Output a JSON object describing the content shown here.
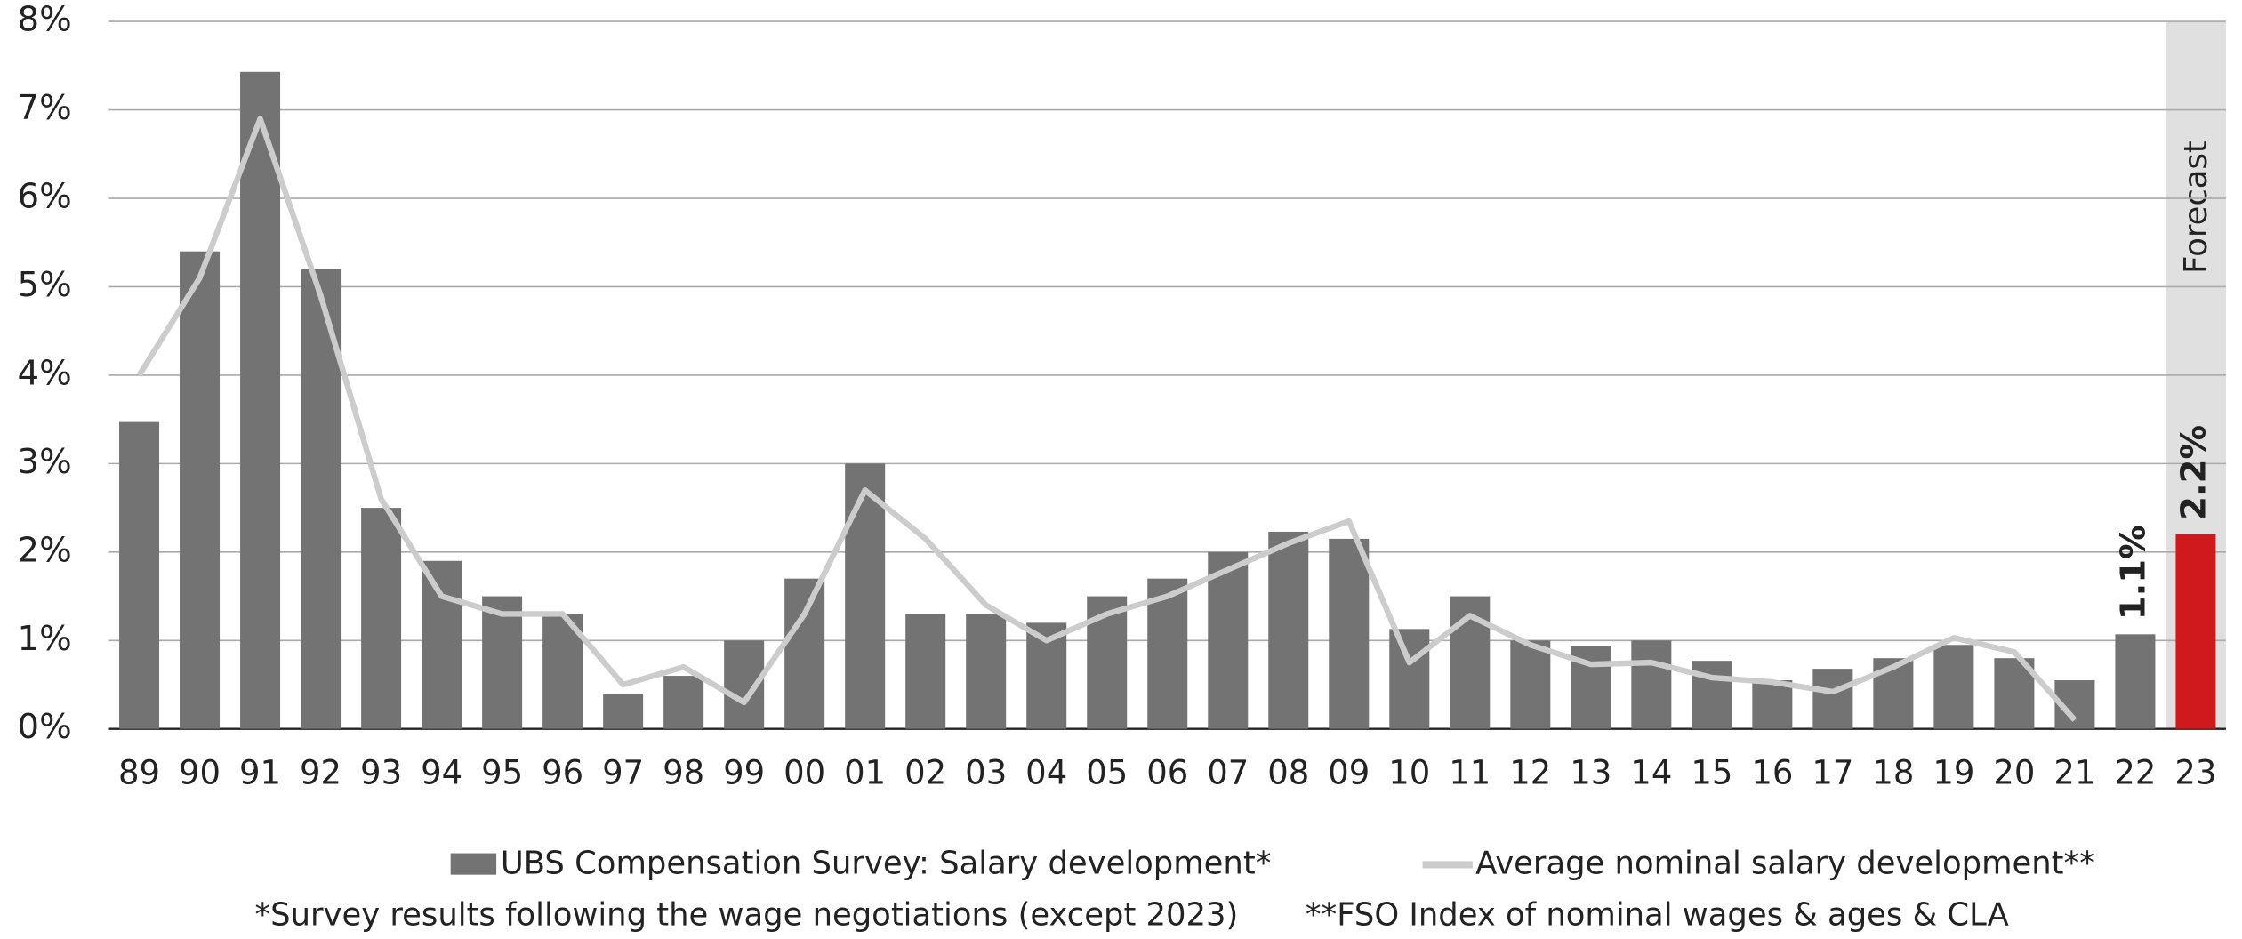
{
  "chart_data": {
    "type": "bar",
    "categories": [
      "89",
      "90",
      "91",
      "92",
      "93",
      "94",
      "95",
      "96",
      "97",
      "98",
      "99",
      "00",
      "01",
      "02",
      "03",
      "04",
      "05",
      "06",
      "07",
      "08",
      "09",
      "10",
      "11",
      "12",
      "13",
      "14",
      "15",
      "16",
      "17",
      "18",
      "19",
      "20",
      "21",
      "22",
      "23"
    ],
    "series": [
      {
        "name": "UBS Compensation Survey: Salary development*",
        "type": "bar",
        "color": "#737373",
        "colors": [
          "#737373",
          "#737373",
          "#737373",
          "#737373",
          "#737373",
          "#737373",
          "#737373",
          "#737373",
          "#737373",
          "#737373",
          "#737373",
          "#737373",
          "#737373",
          "#737373",
          "#737373",
          "#737373",
          "#737373",
          "#737373",
          "#737373",
          "#737373",
          "#737373",
          "#737373",
          "#737373",
          "#737373",
          "#737373",
          "#737373",
          "#737373",
          "#737373",
          "#737373",
          "#737373",
          "#737373",
          "#737373",
          "#737373",
          "#737373",
          "#d0191c"
        ],
        "values": [
          3.47,
          5.4,
          7.43,
          5.2,
          2.5,
          1.9,
          1.5,
          1.3,
          0.4,
          0.6,
          1.0,
          1.7,
          3.0,
          1.3,
          1.3,
          1.2,
          1.5,
          1.7,
          2.0,
          2.23,
          2.15,
          1.13,
          1.5,
          1.0,
          0.94,
          1.0,
          0.77,
          0.55,
          0.68,
          0.8,
          0.95,
          0.8,
          0.55,
          1.07,
          2.2
        ],
        "value_labels": [
          null,
          null,
          null,
          null,
          null,
          null,
          null,
          null,
          null,
          null,
          null,
          null,
          null,
          null,
          null,
          null,
          null,
          null,
          null,
          null,
          null,
          null,
          null,
          null,
          null,
          null,
          null,
          null,
          null,
          null,
          null,
          null,
          null,
          "1.1%",
          "2.2%"
        ]
      },
      {
        "name": "Average nominal salary development**",
        "type": "line",
        "color": "#cccccc",
        "values": [
          4.0,
          5.1,
          6.9,
          4.9,
          2.6,
          1.5,
          1.3,
          1.3,
          0.5,
          0.7,
          0.3,
          1.3,
          2.7,
          2.15,
          1.4,
          1.0,
          1.3,
          1.5,
          1.8,
          2.1,
          2.35,
          0.75,
          1.28,
          0.95,
          0.73,
          0.75,
          0.58,
          0.53,
          0.42,
          0.7,
          1.03,
          0.87,
          0.1,
          null,
          null
        ]
      }
    ],
    "ylim": [
      0,
      8
    ],
    "yticks": [
      {
        "value": 0,
        "label": "0%"
      },
      {
        "value": 1,
        "label": "1%"
      },
      {
        "value": 2,
        "label": "2%"
      },
      {
        "value": 3,
        "label": "3%"
      },
      {
        "value": 4,
        "label": "4%"
      },
      {
        "value": 5,
        "label": "5%"
      },
      {
        "value": 6,
        "label": "6%"
      },
      {
        "value": 7,
        "label": "7%"
      },
      {
        "value": 8,
        "label": "8%"
      }
    ],
    "grid": true,
    "annotations": [
      "Forecast"
    ],
    "footnotes": [
      "*Survey results following the wage negotiations (except 2023)",
      "**FSO Index of nominal wages & ages & CLA"
    ]
  }
}
